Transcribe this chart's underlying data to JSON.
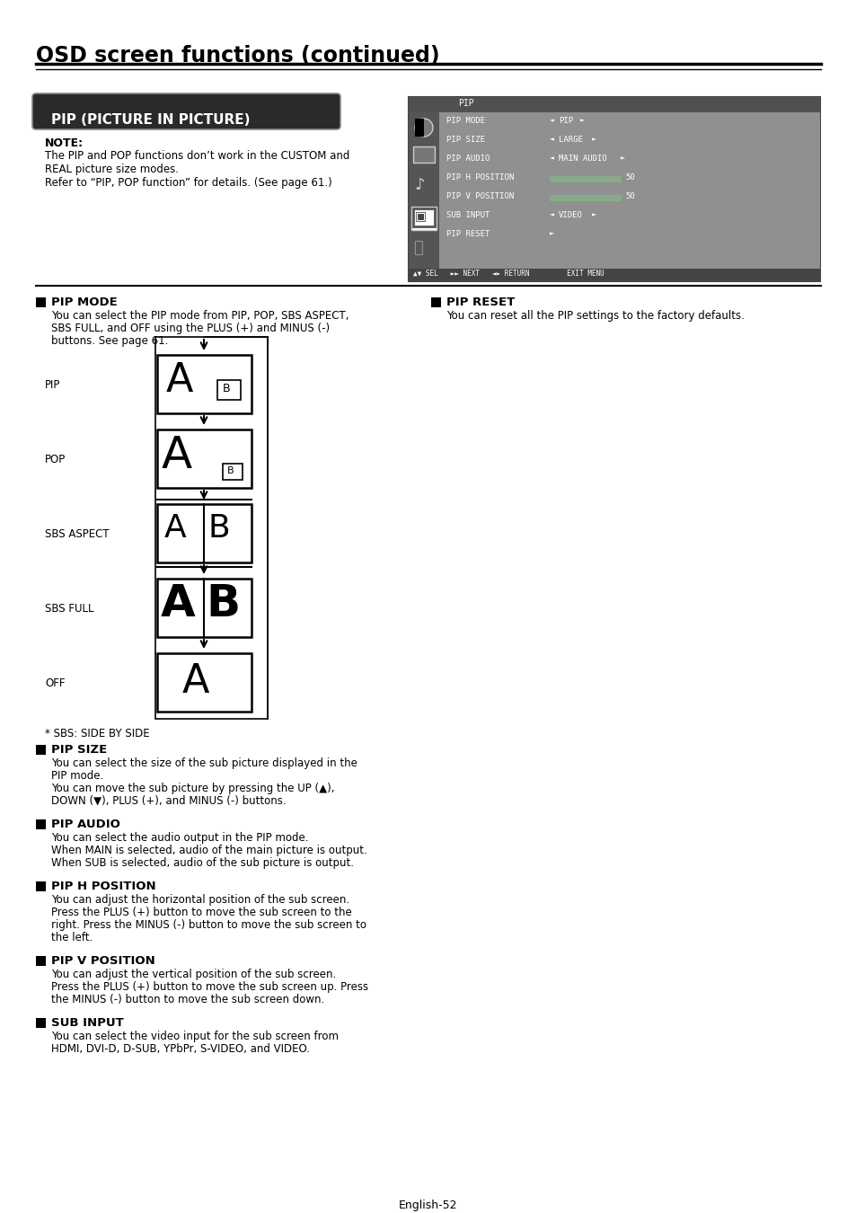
{
  "title": "OSD screen functions (continued)",
  "section_title": "PIP (PICTURE IN PICTURE)",
  "note_title": "NOTE:",
  "note_lines": [
    "The PIP and POP functions don’t work in the CUSTOM and",
    "REAL picture size modes.",
    "Refer to “PIP, POP function” for details. (See page 61.)"
  ],
  "pip_mode_title": "PIP MODE",
  "pip_mode_lines": [
    "You can select the PIP mode from PIP, POP, SBS ASPECT,",
    "SBS FULL, and OFF using the PLUS (+) and MINUS (-)",
    "buttons. See page 61."
  ],
  "pip_mode_labels": [
    "PIP",
    "POP",
    "SBS ASPECT",
    "SBS FULL",
    "OFF"
  ],
  "sbs_note": "* SBS: SIDE BY SIDE",
  "pip_reset_title": "PIP RESET",
  "pip_reset_lines": [
    "You can reset all the PIP settings to the factory defaults."
  ],
  "pip_size_title": "PIP SIZE",
  "pip_size_lines": [
    "You can select the size of the sub picture displayed in the",
    "PIP mode.",
    "You can move the sub picture by pressing the UP (▲),",
    "DOWN (▼), PLUS (+), and MINUS (-) buttons."
  ],
  "pip_audio_title": "PIP AUDIO",
  "pip_audio_lines": [
    "You can select the audio output in the PIP mode.",
    "When MAIN is selected, audio of the main picture is output.",
    "When SUB is selected, audio of the sub picture is output."
  ],
  "pip_h_title": "PIP H POSITION",
  "pip_h_lines": [
    "You can adjust the horizontal position of the sub screen.",
    "Press the PLUS (+) button to move the sub screen to the",
    "right. Press the MINUS (-) button to move the sub screen to",
    "the left."
  ],
  "pip_v_title": "PIP V POSITION",
  "pip_v_lines": [
    "You can adjust the vertical position of the sub screen.",
    "Press the PLUS (+) button to move the sub screen up. Press",
    "the MINUS (-) button to move the sub screen down."
  ],
  "sub_input_title": "SUB INPUT",
  "sub_input_lines": [
    "You can select the video input for the sub screen from",
    "HDMI, DVI-D, D-SUB, YPbPr, S-VIDEO, and VIDEO."
  ],
  "footer": "English-52"
}
